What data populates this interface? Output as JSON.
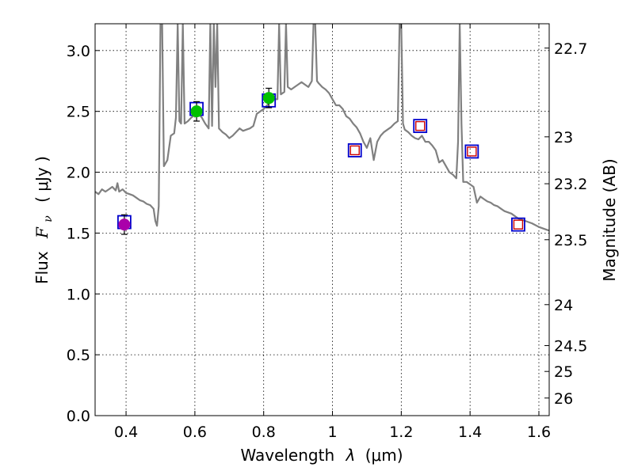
{
  "chart_data": {
    "type": "scatter",
    "title": "",
    "xlabel": "Wavelength",
    "xlabel_symbol": "λ",
    "xlabel_unit": "(μm)",
    "ylabel": "Flux",
    "ylabel_symbol": "F",
    "ylabel_subscript": "ν",
    "ylabel_unit": "( μJy )",
    "y2label": "Magnitude (AB)",
    "xlim": [
      0.31,
      1.63
    ],
    "ylim": [
      0.0,
      3.22
    ],
    "grid": true,
    "legend": "none",
    "x_ticks": [
      {
        "value": 0.4,
        "label": "0.4"
      },
      {
        "value": 0.6,
        "label": "0.6"
      },
      {
        "value": 0.8,
        "label": "0.8"
      },
      {
        "value": 1.0,
        "label": "1"
      },
      {
        "value": 1.2,
        "label": "1.2"
      },
      {
        "value": 1.4,
        "label": "1.4"
      },
      {
        "value": 1.6,
        "label": "1.6"
      }
    ],
    "y_ticks": [
      {
        "value": 0.0,
        "label": "0.0"
      },
      {
        "value": 0.5,
        "label": "0.5"
      },
      {
        "value": 1.0,
        "label": "1.0"
      },
      {
        "value": 1.5,
        "label": "1.5"
      },
      {
        "value": 2.0,
        "label": "2.0"
      },
      {
        "value": 2.5,
        "label": "2.5"
      },
      {
        "value": 3.0,
        "label": "3.0"
      }
    ],
    "y2_ticks": [
      {
        "value": 22.7,
        "label": "22.7"
      },
      {
        "value": 23.0,
        "label": "23"
      },
      {
        "value": 23.2,
        "label": "23.2"
      },
      {
        "value": 23.5,
        "label": "23.5"
      },
      {
        "value": 24.0,
        "label": "24"
      },
      {
        "value": 24.5,
        "label": "24.5"
      },
      {
        "value": 25.0,
        "label": "25"
      },
      {
        "value": 26.0,
        "label": "26"
      }
    ],
    "sed_model": {
      "name": "model spectrum",
      "color": "#808080",
      "points": [
        [
          0.31,
          1.84
        ],
        [
          0.32,
          1.82
        ],
        [
          0.33,
          1.86
        ],
        [
          0.34,
          1.84
        ],
        [
          0.35,
          1.86
        ],
        [
          0.36,
          1.88
        ],
        [
          0.37,
          1.85
        ],
        [
          0.375,
          1.91
        ],
        [
          0.38,
          1.84
        ],
        [
          0.39,
          1.86
        ],
        [
          0.4,
          1.83
        ],
        [
          0.41,
          1.82
        ],
        [
          0.42,
          1.81
        ],
        [
          0.43,
          1.79
        ],
        [
          0.44,
          1.77
        ],
        [
          0.45,
          1.76
        ],
        [
          0.46,
          1.74
        ],
        [
          0.47,
          1.73
        ],
        [
          0.48,
          1.7
        ],
        [
          0.485,
          1.6
        ],
        [
          0.49,
          1.56
        ],
        [
          0.495,
          1.72
        ],
        [
          0.5,
          3.22
        ],
        [
          0.505,
          3.22
        ],
        [
          0.51,
          2.05
        ],
        [
          0.52,
          2.1
        ],
        [
          0.53,
          2.3
        ],
        [
          0.54,
          2.32
        ],
        [
          0.545,
          2.45
        ],
        [
          0.55,
          3.22
        ],
        [
          0.555,
          2.42
        ],
        [
          0.56,
          2.4
        ],
        [
          0.565,
          3.22
        ],
        [
          0.57,
          2.4
        ],
        [
          0.58,
          2.42
        ],
        [
          0.59,
          2.45
        ],
        [
          0.6,
          2.47
        ],
        [
          0.61,
          2.48
        ],
        [
          0.62,
          2.45
        ],
        [
          0.63,
          2.4
        ],
        [
          0.64,
          2.36
        ],
        [
          0.645,
          3.22
        ],
        [
          0.65,
          2.38
        ],
        [
          0.655,
          3.22
        ],
        [
          0.66,
          2.7
        ],
        [
          0.665,
          3.22
        ],
        [
          0.67,
          2.36
        ],
        [
          0.68,
          2.33
        ],
        [
          0.69,
          2.31
        ],
        [
          0.7,
          2.28
        ],
        [
          0.71,
          2.3
        ],
        [
          0.72,
          2.33
        ],
        [
          0.73,
          2.36
        ],
        [
          0.74,
          2.34
        ],
        [
          0.75,
          2.35
        ],
        [
          0.76,
          2.36
        ],
        [
          0.77,
          2.38
        ],
        [
          0.78,
          2.48
        ],
        [
          0.79,
          2.5
        ],
        [
          0.8,
          2.52
        ],
        [
          0.81,
          2.55
        ],
        [
          0.82,
          2.58
        ],
        [
          0.83,
          2.6
        ],
        [
          0.84,
          2.6
        ],
        [
          0.845,
          3.22
        ],
        [
          0.85,
          2.64
        ],
        [
          0.86,
          2.66
        ],
        [
          0.865,
          3.22
        ],
        [
          0.87,
          2.7
        ],
        [
          0.88,
          2.68
        ],
        [
          0.89,
          2.7
        ],
        [
          0.9,
          2.72
        ],
        [
          0.91,
          2.74
        ],
        [
          0.92,
          2.72
        ],
        [
          0.93,
          2.7
        ],
        [
          0.94,
          2.75
        ],
        [
          0.945,
          3.22
        ],
        [
          0.95,
          3.22
        ],
        [
          0.955,
          2.75
        ],
        [
          0.96,
          2.73
        ],
        [
          0.97,
          2.7
        ],
        [
          0.98,
          2.68
        ],
        [
          0.99,
          2.65
        ],
        [
          1.0,
          2.6
        ],
        [
          1.01,
          2.55
        ],
        [
          1.02,
          2.55
        ],
        [
          1.03,
          2.52
        ],
        [
          1.04,
          2.46
        ],
        [
          1.05,
          2.44
        ],
        [
          1.06,
          2.4
        ],
        [
          1.07,
          2.37
        ],
        [
          1.08,
          2.32
        ],
        [
          1.09,
          2.25
        ],
        [
          1.1,
          2.2
        ],
        [
          1.11,
          2.28
        ],
        [
          1.12,
          2.1
        ],
        [
          1.13,
          2.25
        ],
        [
          1.14,
          2.3
        ],
        [
          1.15,
          2.33
        ],
        [
          1.16,
          2.35
        ],
        [
          1.17,
          2.37
        ],
        [
          1.18,
          2.4
        ],
        [
          1.19,
          2.42
        ],
        [
          1.195,
          3.22
        ],
        [
          1.2,
          3.22
        ],
        [
          1.205,
          2.4
        ],
        [
          1.21,
          2.35
        ],
        [
          1.22,
          2.33
        ],
        [
          1.23,
          2.3
        ],
        [
          1.24,
          2.28
        ],
        [
          1.25,
          2.27
        ],
        [
          1.26,
          2.3
        ],
        [
          1.27,
          2.25
        ],
        [
          1.28,
          2.25
        ],
        [
          1.29,
          2.22
        ],
        [
          1.3,
          2.18
        ],
        [
          1.31,
          2.08
        ],
        [
          1.32,
          2.1
        ],
        [
          1.33,
          2.05
        ],
        [
          1.34,
          2.0
        ],
        [
          1.35,
          1.98
        ],
        [
          1.36,
          1.95
        ],
        [
          1.365,
          2.25
        ],
        [
          1.37,
          3.22
        ],
        [
          1.375,
          2.4
        ],
        [
          1.38,
          1.92
        ],
        [
          1.39,
          1.92
        ],
        [
          1.4,
          1.9
        ],
        [
          1.41,
          1.88
        ],
        [
          1.42,
          1.75
        ],
        [
          1.43,
          1.8
        ],
        [
          1.44,
          1.78
        ],
        [
          1.45,
          1.76
        ],
        [
          1.46,
          1.75
        ],
        [
          1.47,
          1.73
        ],
        [
          1.48,
          1.72
        ],
        [
          1.49,
          1.7
        ],
        [
          1.5,
          1.68
        ],
        [
          1.52,
          1.66
        ],
        [
          1.54,
          1.62
        ],
        [
          1.56,
          1.6
        ],
        [
          1.58,
          1.58
        ],
        [
          1.6,
          1.55
        ],
        [
          1.62,
          1.53
        ],
        [
          1.63,
          1.52
        ]
      ]
    },
    "photometry": [
      {
        "name": "band-0.40",
        "x": 0.395,
        "y": 1.57,
        "err": 0.08,
        "type": "detection",
        "color": "#aa00aa"
      },
      {
        "name": "band-0.60",
        "x": 0.605,
        "y": 2.5,
        "err": 0.08,
        "type": "detection",
        "color": "#00c000"
      },
      {
        "name": "band-0.81",
        "x": 0.815,
        "y": 2.61,
        "err": 0.08,
        "type": "detection",
        "color": "#00c000"
      }
    ],
    "model_fluxes": [
      {
        "name": "model-0.40",
        "x": 0.395,
        "y": 1.59
      },
      {
        "name": "model-0.60",
        "x": 0.605,
        "y": 2.52
      },
      {
        "name": "model-0.81",
        "x": 0.815,
        "y": 2.59
      },
      {
        "name": "model-1.06",
        "x": 1.065,
        "y": 2.18
      },
      {
        "name": "model-1.25",
        "x": 1.255,
        "y": 2.38
      },
      {
        "name": "model-1.40",
        "x": 1.405,
        "y": 2.17
      },
      {
        "name": "model-1.54",
        "x": 1.54,
        "y": 1.57
      }
    ],
    "upper_limits": [
      {
        "name": "limit-1.06",
        "x": 1.065,
        "y": 2.18
      },
      {
        "name": "limit-1.25",
        "x": 1.255,
        "y": 2.38
      },
      {
        "name": "limit-1.40",
        "x": 1.405,
        "y": 2.17
      },
      {
        "name": "limit-1.54",
        "x": 1.54,
        "y": 1.57
      }
    ],
    "colors": {
      "model_box": "#0000cc",
      "limit_box": "#cc0000",
      "errorbar": "#000000",
      "sed": "#808080"
    }
  }
}
